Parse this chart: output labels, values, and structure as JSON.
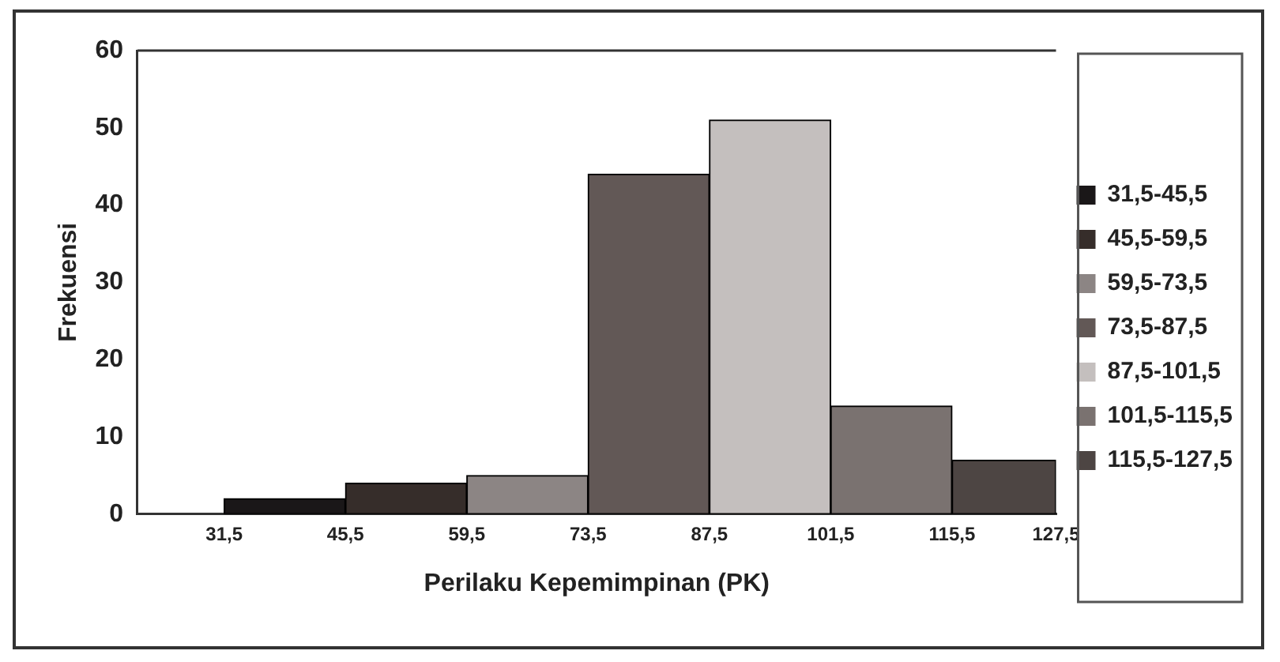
{
  "chart_data": {
    "type": "histogram",
    "xlabel": "Perilaku Kepemimpinan (PK)",
    "ylabel": "Frekuensi",
    "bins": [
      31.5,
      45.5,
      59.5,
      73.5,
      87.5,
      101.5,
      115.5,
      127.5
    ],
    "series": [
      {
        "name": "31,5-45,5",
        "color": "#1a1718",
        "values": [
          2,
          null,
          null,
          null,
          null,
          null,
          null
        ]
      },
      {
        "name": "45,5-59,5",
        "color": "#362d2a",
        "values": [
          null,
          4,
          null,
          null,
          null,
          null,
          null
        ]
      },
      {
        "name": "59,5-73,5",
        "color": "#8c8584",
        "values": [
          null,
          null,
          5,
          null,
          null,
          null,
          null
        ]
      },
      {
        "name": "73,5-87,5",
        "color": "#625856",
        "values": [
          null,
          null,
          null,
          44,
          null,
          null,
          null
        ]
      },
      {
        "name": "87,5-101,5",
        "color": "#c4bfbe",
        "values": [
          null,
          null,
          null,
          null,
          51,
          null,
          null
        ]
      },
      {
        "name": "101,5-115,5",
        "color": "#7a7270",
        "values": [
          null,
          null,
          null,
          null,
          null,
          14,
          null
        ]
      },
      {
        "name": "115,5-127,5",
        "color": "#4d4543",
        "values": [
          null,
          null,
          null,
          null,
          null,
          null,
          7
        ]
      }
    ],
    "xlim": [
      21.5,
      127.5
    ],
    "xticks": [
      {
        "value": 31.5,
        "label": "31,5"
      },
      {
        "value": 45.5,
        "label": "45,5"
      },
      {
        "value": 59.5,
        "label": "59,5"
      },
      {
        "value": 73.5,
        "label": "73,5"
      },
      {
        "value": 87.5,
        "label": "87,5"
      },
      {
        "value": 101.5,
        "label": "101,5"
      },
      {
        "value": 115.5,
        "label": "115,5"
      },
      {
        "value": 127.5,
        "label": "127,5"
      }
    ],
    "ylim": [
      0,
      60
    ],
    "yticks": [
      0,
      10,
      20,
      30,
      40,
      50,
      60
    ],
    "grid": false,
    "legend": "right"
  }
}
